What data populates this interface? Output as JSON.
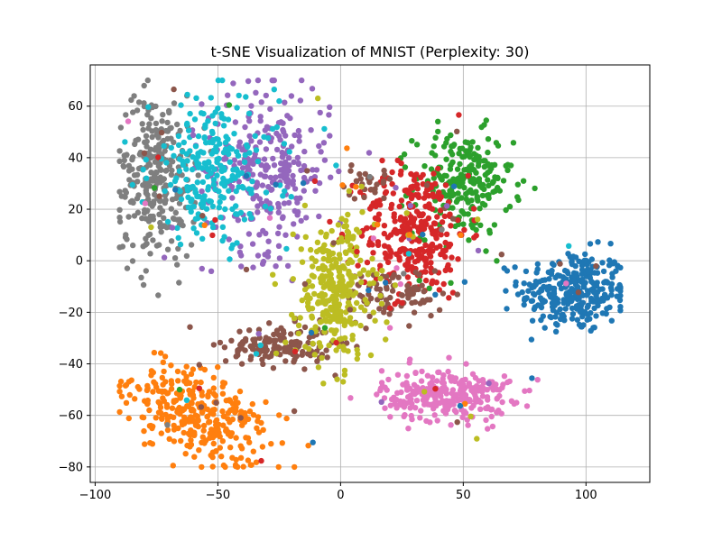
{
  "chart_data": {
    "type": "scatter",
    "title": "t-SNE Visualization of MNIST (Perplexity: 30)",
    "xlabel": "",
    "ylabel": "",
    "xlim": [
      -102,
      126
    ],
    "ylim": [
      -86,
      76
    ],
    "x_ticks": [
      -100,
      -50,
      0,
      50,
      100
    ],
    "y_ticks": [
      -80,
      -60,
      -40,
      -20,
      0,
      20,
      40,
      60
    ],
    "x_tick_labels": [
      "−100",
      "−50",
      "0",
      "50",
      "100"
    ],
    "y_tick_labels": [
      "−80",
      "−60",
      "−40",
      "−20",
      "0",
      "20",
      "40",
      "60"
    ],
    "grid": true,
    "legend": "none",
    "clusters": [
      {
        "color": "#1f77b4",
        "cx": 95,
        "cy": -12,
        "sx": 11,
        "sy": 8,
        "n": 300
      },
      {
        "color": "#ff7f0e",
        "cx": -58,
        "cy": -60,
        "sx": 15,
        "sy": 8,
        "n": 320,
        "rot": -28
      },
      {
        "color": "#2ca02c",
        "cx": 50,
        "cy": 30,
        "sx": 10,
        "sy": 10,
        "n": 230
      },
      {
        "color": "#d62728",
        "cx": 30,
        "cy": 12,
        "sx": 11,
        "sy": 13,
        "n": 300
      },
      {
        "color": "#9467bd",
        "cx": -30,
        "cy": 35,
        "sx": 13,
        "sy": 16,
        "n": 280
      },
      {
        "color": "#8c564b",
        "cx": -25,
        "cy": -33,
        "sx": 11,
        "sy": 4,
        "n": 140
      },
      {
        "color": "#8c564b",
        "cx": 22,
        "cy": -13,
        "sx": 10,
        "sy": 5,
        "n": 80
      },
      {
        "color": "#8c564b",
        "cx": 10,
        "cy": 30,
        "sx": 6,
        "sy": 3,
        "n": 25
      },
      {
        "color": "#e377c2",
        "cx": 43,
        "cy": -52,
        "sx": 13,
        "sy": 5,
        "n": 280
      },
      {
        "color": "#7f7f7f",
        "cx": -75,
        "cy": 33,
        "sx": 8,
        "sy": 16,
        "n": 280
      },
      {
        "color": "#bcbd22",
        "cx": -2,
        "cy": -12,
        "sx": 8,
        "sy": 14,
        "n": 300
      },
      {
        "color": "#17becf",
        "cx": -52,
        "cy": 35,
        "sx": 13,
        "sy": 14,
        "n": 240
      }
    ],
    "outliers": 120
  }
}
